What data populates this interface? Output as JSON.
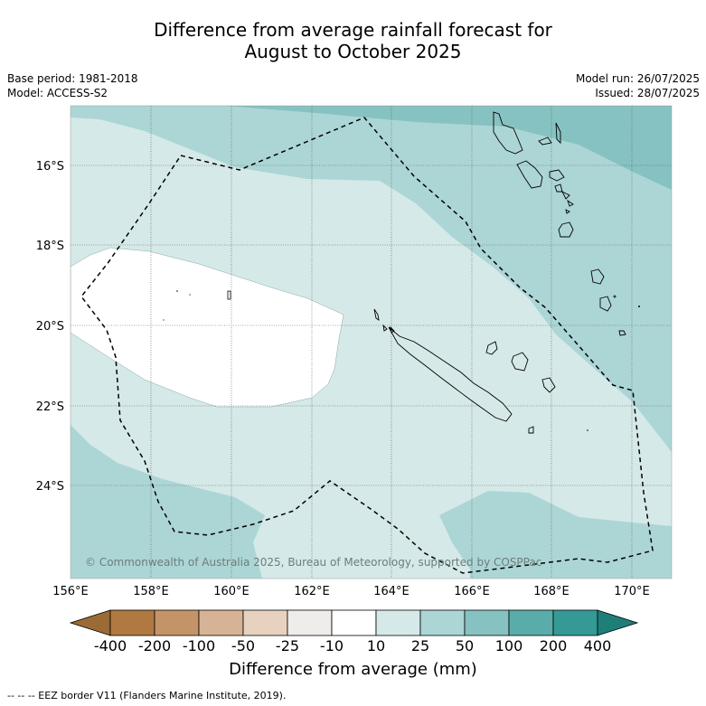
{
  "title_line1": "Difference from average rainfall forecast for",
  "title_line2": "August to October 2025",
  "base_period": "Base period: 1981-2018",
  "model": "Model: ACCESS-S2",
  "model_run": "Model run: 26/07/2025",
  "issued": "Issued: 28/07/2025",
  "copyright": "© Commonwealth of Australia 2025, Bureau of Meteorology, supported by COSPPac",
  "lat_labels": [
    "16°S",
    "18°S",
    "20°S",
    "22°S",
    "24°S"
  ],
  "lon_labels": [
    "156°E",
    "158°E",
    "160°E",
    "162°E",
    "164°E",
    "166°E",
    "168°E",
    "170°E"
  ],
  "colorbar": {
    "ticks": [
      "-400",
      "-200",
      "-100",
      "-50",
      "-25",
      "-10",
      "10",
      "25",
      "50",
      "100",
      "200",
      "400"
    ],
    "colors": [
      "#9c6a35",
      "#b07942",
      "#c49468",
      "#d6b394",
      "#e7d2bf",
      "#efede9",
      "#ffffff",
      "#d5e9e8",
      "#acd6d5",
      "#86c2c1",
      "#5aacab",
      "#359a95",
      "#1e7f78"
    ],
    "title": "Difference from average (mm)"
  },
  "legend_note": "--  --  -- EEZ border V11 (Flanders Marine Institute, 2019)."
}
